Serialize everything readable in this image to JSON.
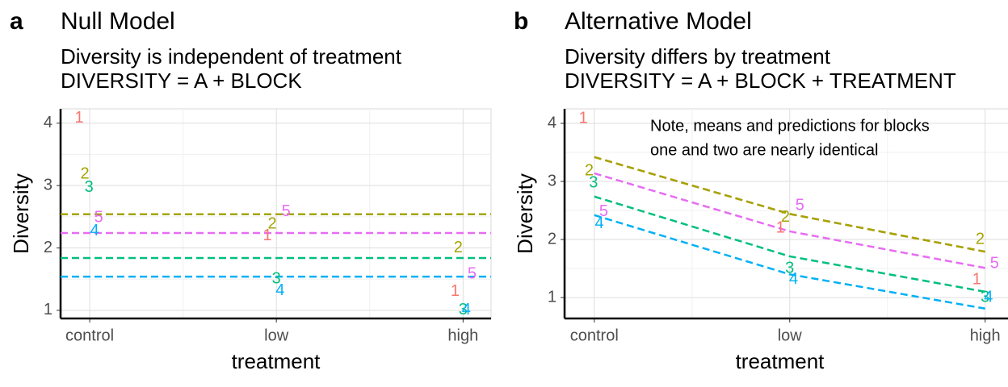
{
  "chart_data": [
    {
      "type": "scatter",
      "tag": "a",
      "title": "Null Model",
      "subtitle": [
        "Diversity is independent of treatment",
        "DIVERSITY = A + BLOCK"
      ],
      "xlabel": "treatment",
      "ylabel": "Diversity",
      "xlim": [
        0.844,
        3.15
      ],
      "ylim": [
        0.87,
        4.23
      ],
      "xticks": [
        {
          "value": 1,
          "label": "control"
        },
        {
          "value": 2,
          "label": "low"
        },
        {
          "value": 3,
          "label": "high"
        }
      ],
      "yticks": [
        1,
        2,
        3,
        4
      ],
      "x_minor_ticks": [
        1.5,
        2.5
      ],
      "y_minor_ticks": [
        1.5,
        2.5,
        3.5
      ],
      "grid": true,
      "series": [
        {
          "name": "1",
          "color": "#F8766D",
          "x": [
            0.944,
            1.952,
            2.957
          ],
          "values": [
            4.08,
            2.19,
            1.3
          ],
          "hline": 2.54
        },
        {
          "name": "2",
          "color": "#A3A500",
          "x": [
            0.974,
            1.978,
            2.974
          ],
          "values": [
            3.18,
            2.38,
            2.0
          ],
          "hline": 2.54
        },
        {
          "name": "3",
          "color": "#00BF7D",
          "x": [
            0.996,
            2.0,
            3.0
          ],
          "values": [
            2.97,
            1.5,
            1.0
          ],
          "hline": 1.84
        },
        {
          "name": "4",
          "color": "#00B0F6",
          "x": [
            1.026,
            2.02,
            3.017
          ],
          "values": [
            2.27,
            1.31,
            1.0
          ],
          "hline": 1.54
        },
        {
          "name": "5",
          "color": "#E76BF3",
          "x": [
            1.048,
            2.052,
            3.048
          ],
          "values": [
            2.48,
            2.58,
            1.58
          ],
          "hline": 2.24
        }
      ]
    },
    {
      "type": "scatter",
      "tag": "b",
      "title": "Alternative Model",
      "subtitle": [
        "Diversity differs by treatment",
        "DIVERSITY = A + BLOCK + TREATMENT"
      ],
      "annotation": [
        "Note, means and predictions for blocks",
        "one and two are nearly identical"
      ],
      "xlabel": "treatment",
      "ylabel": "Diversity",
      "xlim": [
        0.848,
        3.15
      ],
      "ylim": [
        0.64,
        4.25
      ],
      "xticks": [
        {
          "value": 1,
          "label": "control"
        },
        {
          "value": 2,
          "label": "low"
        },
        {
          "value": 3,
          "label": "high"
        }
      ],
      "yticks": [
        1,
        2,
        3,
        4
      ],
      "x_minor_ticks": [
        1.5,
        2.5
      ],
      "y_minor_ticks": [
        1.5,
        2.5,
        3.5
      ],
      "grid": true,
      "fit_x": [
        1,
        2,
        3
      ],
      "series": [
        {
          "name": "1",
          "color": "#F8766D",
          "x": [
            0.944,
            1.952,
            2.957
          ],
          "values": [
            4.08,
            2.19,
            1.3
          ],
          "fit": [
            3.42,
            2.44,
            1.79
          ]
        },
        {
          "name": "2",
          "color": "#A3A500",
          "x": [
            0.974,
            1.978,
            2.974
          ],
          "values": [
            3.18,
            2.38,
            2.0
          ],
          "fit": [
            3.42,
            2.44,
            1.79
          ]
        },
        {
          "name": "3",
          "color": "#00BF7D",
          "x": [
            0.996,
            2.0,
            3.0
          ],
          "values": [
            2.97,
            1.5,
            1.0
          ],
          "fit": [
            2.74,
            1.71,
            1.1
          ]
        },
        {
          "name": "4",
          "color": "#00B0F6",
          "x": [
            1.026,
            2.02,
            3.017
          ],
          "values": [
            2.27,
            1.31,
            1.0
          ],
          "fit": [
            2.42,
            1.4,
            0.81
          ]
        },
        {
          "name": "5",
          "color": "#E76BF3",
          "x": [
            1.048,
            2.052,
            3.048
          ],
          "values": [
            2.48,
            2.58,
            1.58
          ],
          "fit": [
            3.14,
            2.14,
            1.51
          ]
        }
      ]
    }
  ]
}
